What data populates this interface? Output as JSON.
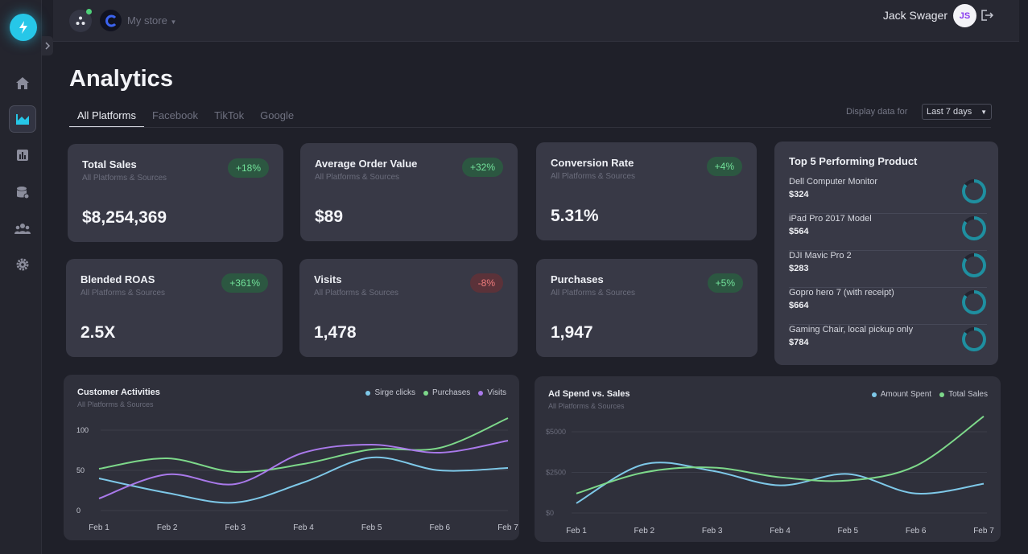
{
  "app": {
    "store_name": "My store",
    "user_name": "Jack Swager",
    "user_initials": "JS"
  },
  "icons": {
    "logo": "lightning-icon",
    "home": "home-icon",
    "analytics": "analytics-icon",
    "reports": "bar-chart-icon",
    "database": "database-icon",
    "team": "team-icon",
    "settings": "gear-icon",
    "logout": "logout-icon",
    "collapse": "chevron-right-icon"
  },
  "colors": {
    "accent": "#26c7e8",
    "positive": "#72e29a",
    "negative": "#f07c7c",
    "avatar_text": "#8a3df0"
  },
  "page": {
    "title": "Analytics",
    "tabs": [
      {
        "label": "All Platforms"
      },
      {
        "label": "Facebook"
      },
      {
        "label": "TikTok"
      },
      {
        "label": "Google"
      }
    ],
    "display_label": "Display data for",
    "range": "Last 7 days"
  },
  "kpis": [
    {
      "title": "Total Sales",
      "sub": "All Platforms & Sources",
      "value": "$8,254,369",
      "change": "+18%"
    },
    {
      "title": "Average Order Value",
      "sub": "All Platforms & Sources",
      "value": "$89",
      "change": "+32%"
    },
    {
      "title": "Conversion Rate",
      "sub": "All Platforms & Sources",
      "value": "5.31%",
      "change": "+4%"
    },
    {
      "title": "Blended ROAS",
      "sub": "All Platforms & Sources",
      "value": "2.5X",
      "change": "+361%"
    },
    {
      "title": "Visits",
      "sub": "All Platforms & Sources",
      "value": "1,478",
      "change": "-8%"
    },
    {
      "title": "Purchases",
      "sub": "All Platforms & Sources",
      "value": "1,947",
      "change": "+5%"
    }
  ],
  "top_products": {
    "title": "Top 5 Performing Product",
    "items": [
      {
        "name": "Dell Computer Monitor",
        "price": "$324",
        "ring_fraction": 0.85
      },
      {
        "name": "iPad Pro 2017 Model",
        "price": "$564",
        "ring_fraction": 0.85
      },
      {
        "name": "DJI Mavic Pro 2",
        "price": "$283",
        "ring_fraction": 0.85
      },
      {
        "name": "Gopro hero 7 (with receipt)",
        "price": "$664",
        "ring_fraction": 0.85
      },
      {
        "name": "Gaming Chair, local pickup only",
        "price": "$784",
        "ring_fraction": 0.85
      }
    ]
  },
  "chart_data": [
    {
      "type": "line",
      "title": "Customer Activities",
      "subtitle": "All Platforms & Sources",
      "x": [
        "Feb 1",
        "Feb 2",
        "Feb 3",
        "Feb 4",
        "Feb 5",
        "Feb 6",
        "Feb 7"
      ],
      "yticks": [
        "100",
        "50",
        "0"
      ],
      "ylim": [
        0,
        100
      ],
      "legend_position": "top-right",
      "series": [
        {
          "name": "Sirge clicks",
          "color": "#7ec8e8",
          "values": [
            40,
            22,
            10,
            35,
            66,
            50,
            53
          ]
        },
        {
          "name": "Purchases",
          "color": "#7dd88a",
          "values": [
            52,
            65,
            48,
            58,
            76,
            78,
            115
          ]
        },
        {
          "name": "Visits",
          "color": "#a979ea",
          "values": [
            15,
            45,
            33,
            72,
            82,
            72,
            87
          ]
        }
      ]
    },
    {
      "type": "line",
      "title": "Ad Spend vs. Sales",
      "subtitle": "All Platforms & Sources",
      "x": [
        "Feb 1",
        "Feb 2",
        "Feb 3",
        "Feb 4",
        "Feb 5",
        "Feb 6",
        "Feb 7"
      ],
      "yticks": [
        "$5000",
        "$2500",
        "$0"
      ],
      "ylim": [
        0,
        5000
      ],
      "legend_position": "top-right",
      "series": [
        {
          "name": "Amount Spent",
          "color": "#7ec8e8",
          "values": [
            600,
            3000,
            2600,
            1700,
            2400,
            1200,
            1800
          ]
        },
        {
          "name": "Total Sales",
          "color": "#7dd88a",
          "values": [
            1200,
            2500,
            2800,
            2200,
            2000,
            2900,
            5950
          ]
        }
      ]
    }
  ]
}
